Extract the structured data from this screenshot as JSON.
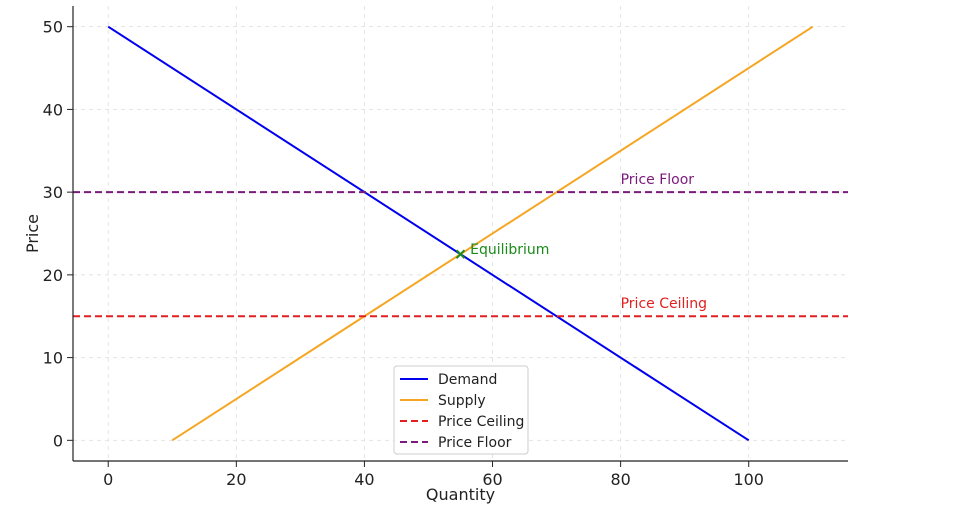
{
  "chart_data": {
    "type": "line",
    "title": "",
    "xlabel": "Quantity",
    "ylabel": "Price",
    "xlim": [
      -5.5,
      115.5
    ],
    "ylim": [
      -2.5,
      52.5
    ],
    "xticks": [
      0,
      20,
      40,
      60,
      80,
      100
    ],
    "yticks": [
      0,
      10,
      20,
      30,
      40,
      50
    ],
    "grid": true,
    "legend_position": "bottom-center",
    "series": [
      {
        "name": "Demand",
        "color": "#0000ee",
        "dash": "solid",
        "x": [
          0,
          100
        ],
        "y": [
          50,
          0
        ]
      },
      {
        "name": "Supply",
        "color": "#f5a623",
        "dash": "solid",
        "x": [
          10,
          110
        ],
        "y": [
          0,
          50
        ]
      },
      {
        "name": "Price Ceiling",
        "color": "#e02020",
        "dash": "dashed",
        "x": [
          -5.5,
          115.5
        ],
        "y": [
          15,
          15
        ]
      },
      {
        "name": "Price Floor",
        "color": "#7a1a7a",
        "dash": "dashed",
        "x": [
          -5.5,
          115.5
        ],
        "y": [
          30,
          30
        ]
      }
    ],
    "annotations": [
      {
        "text": "Price Floor",
        "x": 80,
        "y": 31,
        "color": "#7a1a7a"
      },
      {
        "text": "Price Ceiling",
        "x": 80,
        "y": 16,
        "color": "#e02020"
      },
      {
        "text": "Equilibrium",
        "x": 56.5,
        "y": 22.5,
        "color": "#1a8a1a"
      }
    ],
    "points": [
      {
        "x": 55,
        "y": 22.5,
        "marker": "x",
        "color": "#1a8a1a"
      }
    ]
  }
}
